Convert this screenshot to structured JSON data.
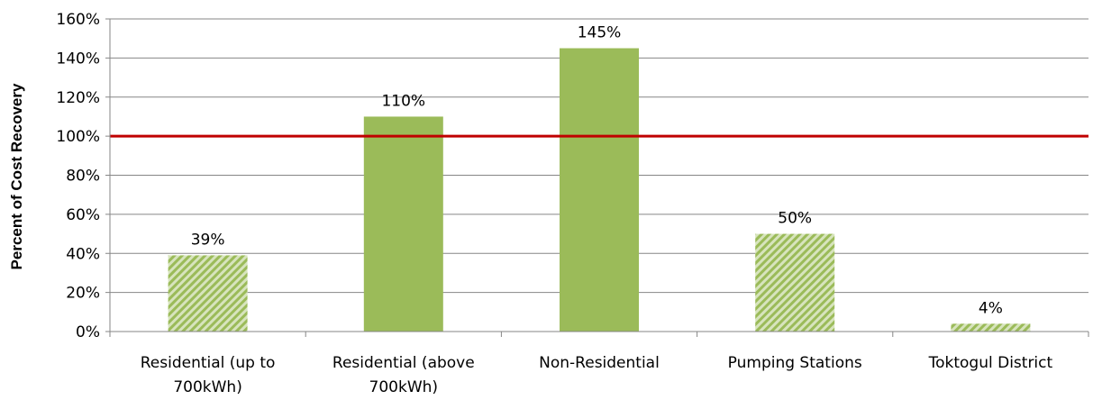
{
  "chart_data": {
    "type": "bar",
    "ylabel": "Percent of Cost Recovery",
    "xlabel": "",
    "ylim": [
      0,
      160
    ],
    "y_ticks": [
      "0%",
      "20%",
      "40%",
      "60%",
      "80%",
      "100%",
      "120%",
      "140%",
      "160%"
    ],
    "grid": true,
    "legend": "none",
    "categories": [
      "Residential (up to 700kWh)",
      "Residential (above 700kWh)",
      "Non-Residential",
      "Pumping Stations",
      "Toktogul District"
    ],
    "category_lines": [
      [
        "Residential (up to",
        "700kWh)"
      ],
      [
        "Residential (above",
        "700kWh)"
      ],
      [
        "Non-Residential"
      ],
      [
        "Pumping Stations"
      ],
      [
        "Toktogul District"
      ]
    ],
    "values": [
      39,
      110,
      145,
      50,
      4
    ],
    "data_labels": [
      "39%",
      "110%",
      "145%",
      "50%",
      "4%"
    ],
    "fill_styles": [
      "hatched",
      "solid",
      "solid",
      "hatched",
      "hatched"
    ],
    "reference_line": {
      "value": 100,
      "color": "#c00000"
    },
    "colors": {
      "bar": "#9bbb59",
      "hatch_light": "#d7e4bd",
      "grid": "#868686",
      "axis": "#868686"
    }
  }
}
